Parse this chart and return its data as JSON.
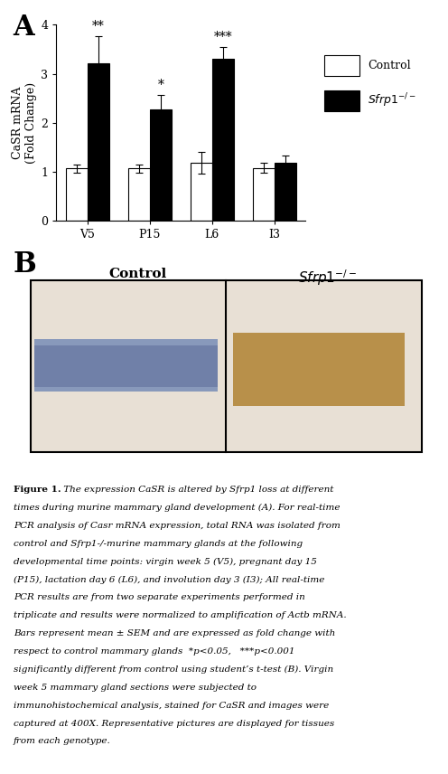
{
  "panel_A_label": "A",
  "panel_B_label": "B",
  "categories": [
    "V5",
    "P15",
    "L6",
    "I3"
  ],
  "control_values": [
    1.07,
    1.07,
    1.18,
    1.08
  ],
  "sfrp1_values": [
    3.22,
    2.27,
    3.3,
    1.18
  ],
  "control_errors": [
    0.08,
    0.08,
    0.22,
    0.1
  ],
  "sfrp1_errors": [
    0.55,
    0.3,
    0.25,
    0.15
  ],
  "control_color": "#ffffff",
  "sfrp1_color": "#000000",
  "bar_edge_color": "#000000",
  "bar_width": 0.35,
  "ylim": [
    0,
    4
  ],
  "yticks": [
    0,
    1,
    2,
    3,
    4
  ],
  "ylabel": "CaSR mRNA\n(Fold Change)",
  "legend_control": "Control",
  "significance_V5": "**",
  "significance_P15": "*",
  "significance_L6": "***",
  "significance_I3": "",
  "sig_fontsize": 10,
  "axis_fontsize": 9,
  "tick_fontsize": 9,
  "legend_fontsize": 9,
  "figure_bg": "#ffffff",
  "caption_lines": [
    "Figure 1. The expression CaSR is altered by Sfrp1 loss at different",
    "times during murine mammary gland development (A). For real-time",
    "PCR analysis of Casr mRNA expression, total RNA was isolated from",
    "control and Sfrp1-/-murine mammary glands at the following",
    "developmental time points: virgin week 5 (V5), pregnant day 15",
    "(P15), lactation day 6 (L6), and involution day 3 (I3); All real-time",
    "PCR results are from two separate experiments performed in",
    "triplicate and results were normalized to amplification of Actb mRNA.",
    "Bars represent mean ± SEM and are expressed as fold change with",
    "respect to control mammary glands  *p<0.05,   ***p<0.001",
    "significantly different from control using student’s t-test (B). Virgin",
    "week 5 mammary gland sections were subjected to",
    "immunohistochemical analysis, stained for CaSR and images were",
    "captured at 400X. Representative pictures are displayed for tissues",
    "from each genotype."
  ]
}
